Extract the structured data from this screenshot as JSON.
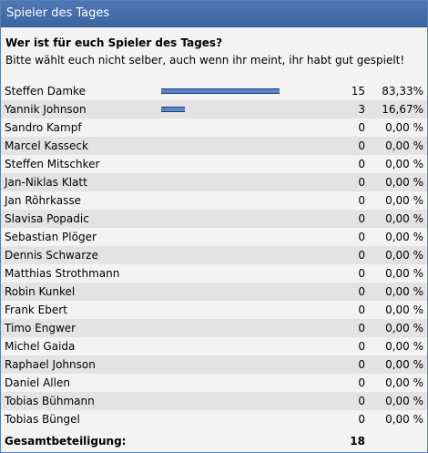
{
  "poll": {
    "title": "Spieler des Tages",
    "question": "Wer ist für euch Spieler des Tages?",
    "hint": "Bitte wählt euch nicht selber, auch wenn ihr meint, ihr habt gut gespielt!",
    "options": [
      {
        "name": "Steffen Damke",
        "votes": "15",
        "percent": "83,33%",
        "share": 0.8333
      },
      {
        "name": "Yannik Johnson",
        "votes": "3",
        "percent": "16,67%",
        "share": 0.1667
      },
      {
        "name": "Sandro Kampf",
        "votes": "0",
        "percent": "0,00 %",
        "share": 0
      },
      {
        "name": "Marcel Kasseck",
        "votes": "0",
        "percent": "0,00 %",
        "share": 0
      },
      {
        "name": "Steffen Mitschker",
        "votes": "0",
        "percent": "0,00 %",
        "share": 0
      },
      {
        "name": "Jan-Niklas Klatt",
        "votes": "0",
        "percent": "0,00 %",
        "share": 0
      },
      {
        "name": "Jan Röhrkasse",
        "votes": "0",
        "percent": "0,00 %",
        "share": 0
      },
      {
        "name": "Slavisa Popadic",
        "votes": "0",
        "percent": "0,00 %",
        "share": 0
      },
      {
        "name": "Sebastian Plöger",
        "votes": "0",
        "percent": "0,00 %",
        "share": 0
      },
      {
        "name": "Dennis Schwarze",
        "votes": "0",
        "percent": "0,00 %",
        "share": 0
      },
      {
        "name": "Matthias Strothmann",
        "votes": "0",
        "percent": "0,00 %",
        "share": 0
      },
      {
        "name": "Robin Kunkel",
        "votes": "0",
        "percent": "0,00 %",
        "share": 0
      },
      {
        "name": "Frank Ebert",
        "votes": "0",
        "percent": "0,00 %",
        "share": 0
      },
      {
        "name": "Timo Engwer",
        "votes": "0",
        "percent": "0,00 %",
        "share": 0
      },
      {
        "name": "Michel Gaida",
        "votes": "0",
        "percent": "0,00 %",
        "share": 0
      },
      {
        "name": "Raphael Johnson",
        "votes": "0",
        "percent": "0,00 %",
        "share": 0
      },
      {
        "name": "Daniel Allen",
        "votes": "0",
        "percent": "0,00 %",
        "share": 0
      },
      {
        "name": "Tobias Bühmann",
        "votes": "0",
        "percent": "0,00 %",
        "share": 0
      },
      {
        "name": "Tobias Büngel",
        "votes": "0",
        "percent": "0,00 %",
        "share": 0
      }
    ],
    "total_label": "Gesamtbeteiligung:",
    "total_votes": "18",
    "bar_color": "#5a86c8",
    "header_color": "#4270ad"
  }
}
